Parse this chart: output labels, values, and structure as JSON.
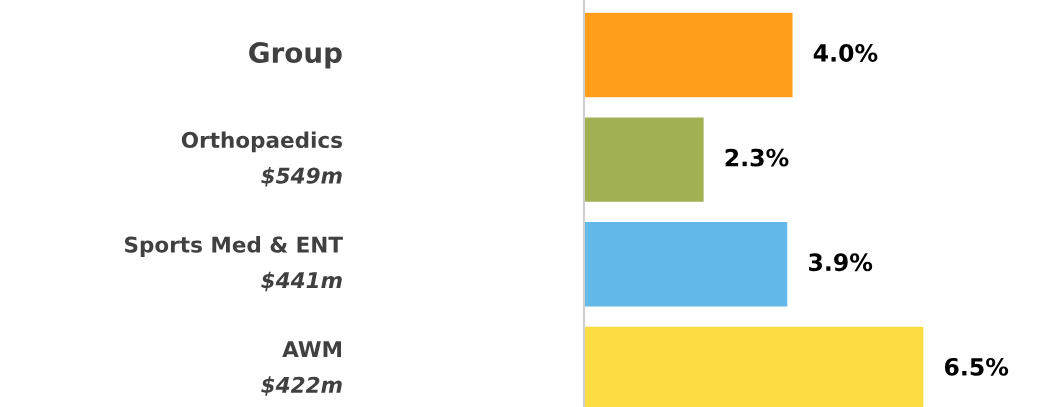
{
  "chart_data": {
    "type": "bar",
    "orientation": "horizontal",
    "categories": [
      "Group",
      "Orthopaedics\n$549m",
      "Sports Med & ENT\n$441m",
      "AWM\n$422m"
    ],
    "values": [
      4.0,
      2.3,
      3.9,
      6.5
    ],
    "colors": [
      "#ff9e1b",
      "#a0b052",
      "#62b8e6",
      "#fddc41"
    ],
    "value_labels": [
      "4.0%",
      "2.3%",
      "3.9%",
      "6.5%"
    ],
    "legend": false
  }
}
